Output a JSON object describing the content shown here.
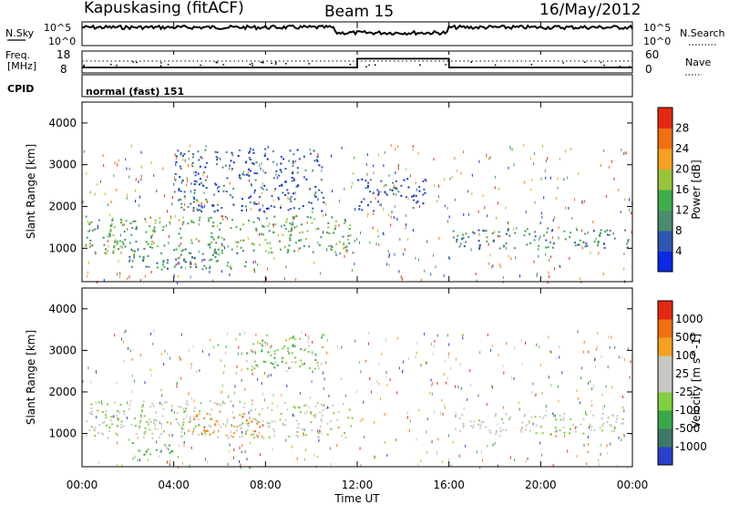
{
  "header": {
    "station": "Kapuskasing (fitACF)",
    "beam": "Beam 15",
    "date": "16/May/2012"
  },
  "top_panels": {
    "nsky_label": "N.Sky",
    "nsky_ticks": [
      "10^5",
      "10^0"
    ],
    "nsearch_label": "N.Search",
    "nsearch_ticks": [
      "10^5",
      "10^0"
    ],
    "freq_label": "Freq.",
    "freq_unit": "[MHz]",
    "freq_ticks": [
      "18",
      "8"
    ],
    "nave_label": "Nave",
    "nave_ticks": [
      "60",
      "0"
    ],
    "cpid_label": "CPID",
    "cpid_value": "normal (fast) 151"
  },
  "chart_data": [
    {
      "type": "line",
      "name": "frequency",
      "ylim": [
        8,
        18
      ],
      "x": [
        0,
        12,
        12,
        16,
        16,
        24
      ],
      "values": [
        10.5,
        10.5,
        14.5,
        14.5,
        10.5,
        10.5
      ]
    },
    {
      "type": "heatmap",
      "name": "power",
      "xlabel": "Time UT",
      "ylabel": "Slant Range [km]",
      "xlim": [
        0,
        24
      ],
      "ylim": [
        200,
        4500
      ],
      "yticks": [
        "1000",
        "2000",
        "3000",
        "4000"
      ],
      "colorbar": {
        "label": "Power [dB]",
        "ticks": [
          "4",
          "8",
          "12",
          "16",
          "20",
          "24",
          "28"
        ],
        "colors": [
          "#0a28e6",
          "#2f55b4",
          "#4a8c6e",
          "#3fae4a",
          "#99c43a",
          "#f5a020",
          "#f07010",
          "#e62810"
        ]
      },
      "regions": [
        {
          "t0": 0.1,
          "t1": 11.8,
          "r0": 900,
          "r1": 1800,
          "level": 3
        },
        {
          "t0": 2.0,
          "t1": 7.5,
          "r0": 500,
          "r1": 1000,
          "level": 2
        },
        {
          "t0": 4.0,
          "t1": 10.5,
          "r0": 1900,
          "r1": 3400,
          "level": 1
        },
        {
          "t0": 12.0,
          "t1": 15.0,
          "r0": 1900,
          "r1": 2700,
          "level": 1
        },
        {
          "t0": 16.1,
          "t1": 24.0,
          "r0": 1000,
          "r1": 1500,
          "level": 2
        }
      ]
    },
    {
      "type": "heatmap",
      "name": "velocity",
      "xlabel": "Time UT",
      "ylabel": "Slant Range [km]",
      "xlim": [
        0,
        24
      ],
      "ylim": [
        200,
        4500
      ],
      "yticks": [
        "1000",
        "2000",
        "3000",
        "4000"
      ],
      "colorbar": {
        "label": "Velocity [m s^-1]",
        "ticks": [
          "1000",
          "500",
          "100",
          "25",
          "-25",
          "-100",
          "-500",
          "-1000"
        ],
        "colors": [
          "#2a40c8",
          "#3e7868",
          "#3aa84a",
          "#80d040",
          "#c8c8c0",
          "#c8c8c0",
          "#f5a020",
          "#f07010",
          "#e62810"
        ]
      },
      "regions": [
        {
          "t0": 0.1,
          "t1": 11.8,
          "r0": 900,
          "r1": 1800,
          "level": 4
        },
        {
          "t0": 4.5,
          "t1": 8.0,
          "r0": 900,
          "r1": 1500,
          "level": 6
        },
        {
          "t0": 2.0,
          "t1": 4.0,
          "r0": 500,
          "r1": 800,
          "level": 3
        },
        {
          "t0": 7.0,
          "t1": 10.5,
          "r0": 2500,
          "r1": 3400,
          "level": 3
        },
        {
          "t0": 16.1,
          "t1": 24.0,
          "r0": 1000,
          "r1": 1500,
          "level": 4
        }
      ]
    }
  ],
  "xaxis": {
    "label": "Time UT",
    "ticks": [
      "00:00",
      "04:00",
      "08:00",
      "12:00",
      "16:00",
      "20:00",
      "00:00"
    ]
  }
}
